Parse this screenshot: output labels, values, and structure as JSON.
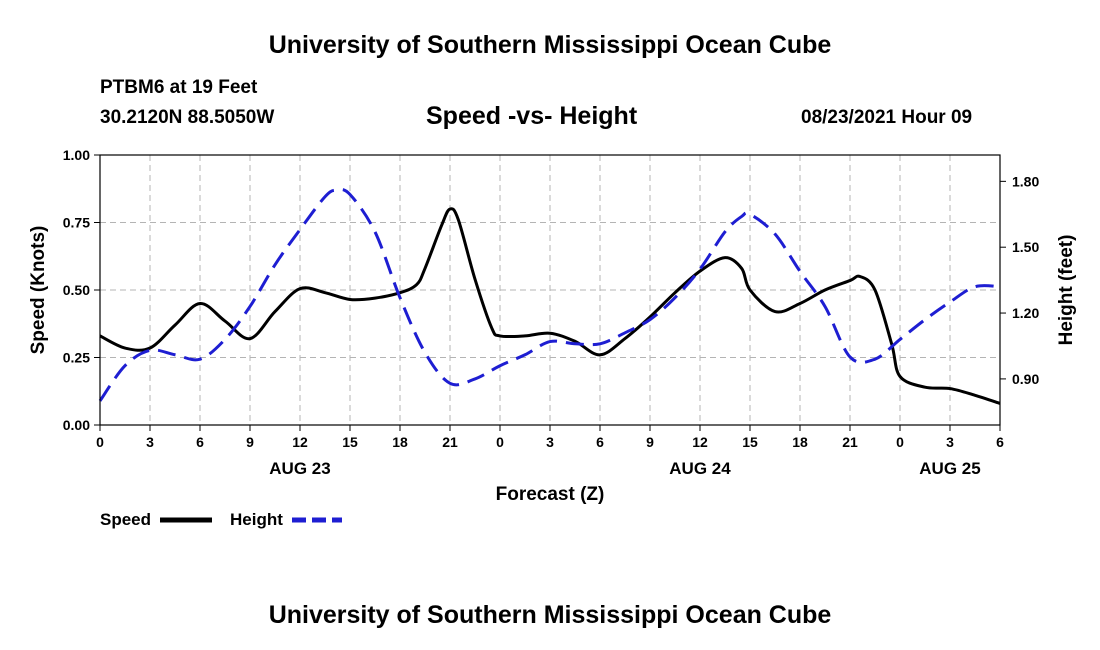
{
  "header": {
    "title_top": "University of Southern Mississippi Ocean Cube",
    "station": "PTBM6 at 19 Feet",
    "coords": "30.2120N  88.5050W",
    "datetime": "08/23/2021 Hour 09",
    "title_bottom": "University of Southern Mississippi Ocean Cube"
  },
  "legend": {
    "speed_label": "Speed",
    "height_label": "Height"
  },
  "chart_data": {
    "type": "line",
    "title": "Speed -vs- Height",
    "xlabel": "Forecast (Z)",
    "ylabel": "Speed (Knots)",
    "y2label": "Height (feet)",
    "x_range": [
      0,
      54
    ],
    "ylim": [
      0,
      1.0
    ],
    "y2lim": [
      0.69,
      1.92
    ],
    "grid": true,
    "legend_position": "bottom-left",
    "x_ticks": [
      0,
      3,
      6,
      9,
      12,
      15,
      18,
      21,
      24,
      27,
      30,
      33,
      36,
      39,
      42,
      45,
      48,
      51,
      54
    ],
    "x_tick_labels": [
      "0",
      "3",
      "6",
      "9",
      "12",
      "15",
      "18",
      "21",
      "0",
      "3",
      "6",
      "9",
      "12",
      "15",
      "18",
      "21",
      "0",
      "3",
      "6"
    ],
    "date_labels": [
      {
        "x": 12,
        "label": "AUG 23"
      },
      {
        "x": 36,
        "label": "AUG 24"
      },
      {
        "x": 51,
        "label": "AUG 25"
      }
    ],
    "y_ticks": [
      0,
      0.25,
      0.5,
      0.75,
      1.0
    ],
    "y_tick_labels": [
      "0.00",
      "0.25",
      "0.50",
      "0.75",
      "1.00"
    ],
    "y2_ticks": [
      0.9,
      1.2,
      1.5,
      1.8
    ],
    "y2_tick_labels": [
      "0.90",
      "1.20",
      "1.50",
      "1.80"
    ],
    "series": [
      {
        "name": "Speed",
        "axis": "left",
        "color": "#000000",
        "dash": "solid",
        "x": [
          0,
          1.5,
          3,
          4.5,
          6,
          7.5,
          9,
          10.5,
          12,
          13.5,
          15,
          16.5,
          18,
          19,
          19.5,
          20.5,
          21,
          21.5,
          22.5,
          23.5,
          24,
          25.5,
          27,
          28.5,
          30,
          31.5,
          33,
          34.5,
          36,
          37.5,
          38.5,
          39,
          40.5,
          42,
          43.5,
          45,
          45.6,
          46.5,
          47.5,
          48,
          49.5,
          51,
          52.5,
          54
        ],
        "y": [
          0.33,
          0.285,
          0.285,
          0.37,
          0.45,
          0.385,
          0.32,
          0.42,
          0.505,
          0.49,
          0.465,
          0.47,
          0.49,
          0.52,
          0.58,
          0.74,
          0.8,
          0.76,
          0.54,
          0.36,
          0.33,
          0.33,
          0.34,
          0.31,
          0.26,
          0.32,
          0.4,
          0.49,
          0.57,
          0.62,
          0.58,
          0.5,
          0.42,
          0.45,
          0.5,
          0.535,
          0.55,
          0.5,
          0.3,
          0.18,
          0.14,
          0.135,
          0.11,
          0.08
        ]
      },
      {
        "name": "Height",
        "axis": "right",
        "color": "#1e1ed2",
        "dash": "dashed",
        "x": [
          0,
          1.5,
          3,
          4.5,
          6,
          7.5,
          9,
          10.5,
          12,
          13.5,
          14.2,
          15,
          16.5,
          18,
          19.5,
          21,
          22.5,
          24,
          25.5,
          27,
          28.5,
          30,
          31.5,
          33,
          34.5,
          36,
          37.5,
          38.5,
          39,
          40.5,
          42,
          43.5,
          45,
          46.5,
          48,
          49.5,
          51,
          52.5,
          54
        ],
        "y": [
          0.8,
          0.96,
          1.03,
          1.01,
          0.99,
          1.08,
          1.23,
          1.42,
          1.58,
          1.73,
          1.76,
          1.74,
          1.57,
          1.27,
          1.02,
          0.88,
          0.9,
          0.96,
          1.01,
          1.07,
          1.06,
          1.06,
          1.11,
          1.17,
          1.27,
          1.4,
          1.57,
          1.64,
          1.65,
          1.56,
          1.39,
          1.23,
          1.0,
          0.99,
          1.08,
          1.17,
          1.25,
          1.32,
          1.32
        ]
      }
    ]
  }
}
